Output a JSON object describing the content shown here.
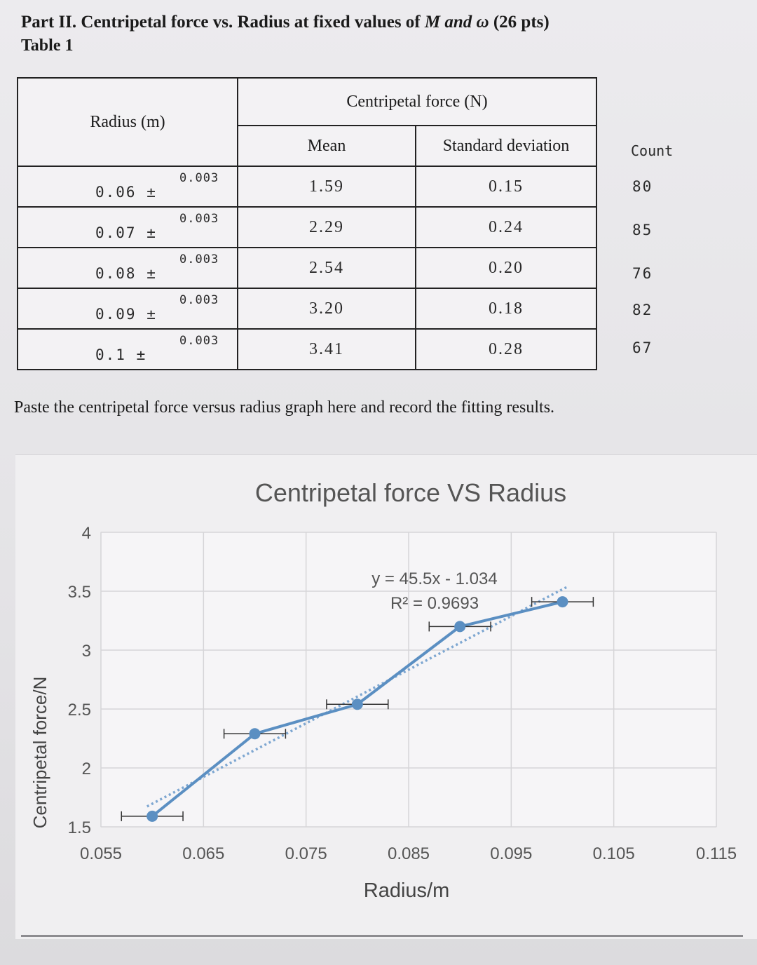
{
  "header": {
    "title_prefix": "Part II. Centripetal force vs. Radius at fixed values of ",
    "title_italic": "M and ω",
    "title_suffix": " (26 pts)",
    "table_label": "Table 1"
  },
  "table": {
    "col_radius": "Radius (m)",
    "col_force": "Centripetal force (N)",
    "col_mean": "Mean",
    "col_std": "Standard deviation",
    "count_label": "Count",
    "rows": [
      {
        "radius": "0.06 ±",
        "unc": "0.003",
        "mean": "1.59",
        "std": "0.15",
        "count": "80"
      },
      {
        "radius": "0.07 ±",
        "unc": "0.003",
        "mean": "2.29",
        "std": "0.24",
        "count": "85"
      },
      {
        "radius": "0.08 ±",
        "unc": "0.003",
        "mean": "2.54",
        "std": "0.20",
        "count": "76"
      },
      {
        "radius": "0.09 ±",
        "unc": "0.003",
        "mean": "3.20",
        "std": "0.18",
        "count": "82"
      },
      {
        "radius": "0.1 ±",
        "unc": "0.003",
        "mean": "3.41",
        "std": "0.28",
        "count": "67"
      }
    ]
  },
  "instruction": "Paste the centripetal force versus radius graph here and record the fitting results.",
  "chart_data": {
    "type": "scatter",
    "title": "Centripetal force VS Radius",
    "xlabel": "Radius/m",
    "ylabel": "Centripetal force/N",
    "xlim": [
      0.055,
      0.115
    ],
    "ylim": [
      1.5,
      4
    ],
    "x_ticks": [
      "0.055",
      "0.065",
      "0.075",
      "0.085",
      "0.095",
      "0.105",
      "0.115"
    ],
    "y_ticks": [
      "1.5",
      "2",
      "2.5",
      "3",
      "3.5",
      "4"
    ],
    "grid": true,
    "series": [
      {
        "x": [
          0.06,
          0.07,
          0.08,
          0.09,
          0.1
        ],
        "y": [
          1.59,
          2.29,
          2.54,
          3.2,
          3.41
        ],
        "x_error": 0.003,
        "color": "#5b8fc2"
      }
    ],
    "trendline": {
      "slope": 45.5,
      "intercept": -1.034,
      "style": "dotted",
      "color": "#7ea7d1"
    },
    "annotations": [
      "y = 45.5x - 1.034",
      "R² = 0.9693"
    ]
  }
}
